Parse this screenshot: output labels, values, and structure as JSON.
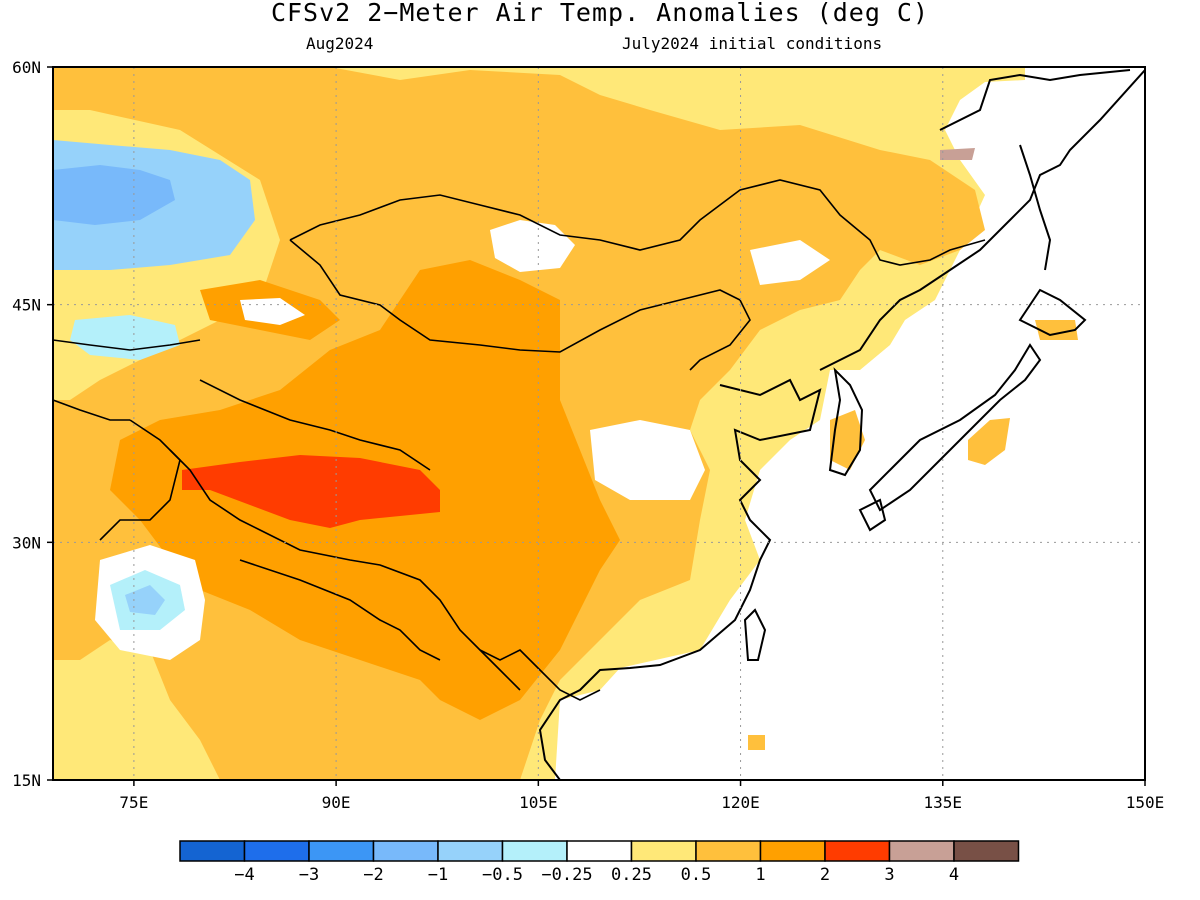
{
  "title": "CFSv2 2−Meter Air Temp. Anomalies (deg C)",
  "subtitle_left": "Aug2024",
  "subtitle_right": "July2024 initial conditions",
  "chart_data": {
    "type": "heatmap",
    "lon_range": [
      69,
      150
    ],
    "lat_range": [
      15,
      60
    ],
    "lat_ticks": [
      {
        "value": 60,
        "label": "60N"
      },
      {
        "value": 45,
        "label": "45N"
      },
      {
        "value": 30,
        "label": "30N"
      },
      {
        "value": 15,
        "label": "15N"
      }
    ],
    "lon_ticks": [
      {
        "value": 75,
        "label": "75E"
      },
      {
        "value": 90,
        "label": "90E"
      },
      {
        "value": 105,
        "label": "105E"
      },
      {
        "value": 120,
        "label": "120E"
      },
      {
        "value": 135,
        "label": "135E"
      },
      {
        "value": 150,
        "label": "150E"
      }
    ],
    "grid": "dotted at 15° intervals",
    "colorbar": {
      "colors": [
        "#1464d2",
        "#1e6eeb",
        "#3c96f5",
        "#78b9fa",
        "#96d2fa",
        "#b4f0fa",
        "#ffffff",
        "#ffe878",
        "#ffc03c",
        "#ffa000",
        "#ff3c00",
        "#c8a096",
        "#785046"
      ],
      "labels": [
        "−4",
        "−3",
        "−2",
        "−1",
        "−0.5",
        "−0.25",
        "0.25",
        "0.5",
        "1",
        "2",
        "3",
        "4"
      ]
    },
    "anomaly_regions": [
      {
        "lon": [
          70,
          80
        ],
        "lat": [
          47,
          55
        ],
        "value": "-1 to -2"
      },
      {
        "lon": [
          77,
          80
        ],
        "lat": [
          25,
          27
        ],
        "value": "-0.25 to -1"
      },
      {
        "lon": [
          77,
          98
        ],
        "lat": [
          32,
          35
        ],
        "value": "2 to 3"
      },
      {
        "lon": [
          105,
          112
        ],
        "lat": [
          32,
          37
        ],
        "value": "-0.25 to 0.25"
      },
      {
        "lon": [
          100,
          128
        ],
        "lat": [
          45,
          55
        ],
        "value": "0.5 to 2"
      },
      {
        "lon": [
          85,
          110
        ],
        "lat": [
          20,
          45
        ],
        "value": "1 to 2"
      }
    ]
  }
}
